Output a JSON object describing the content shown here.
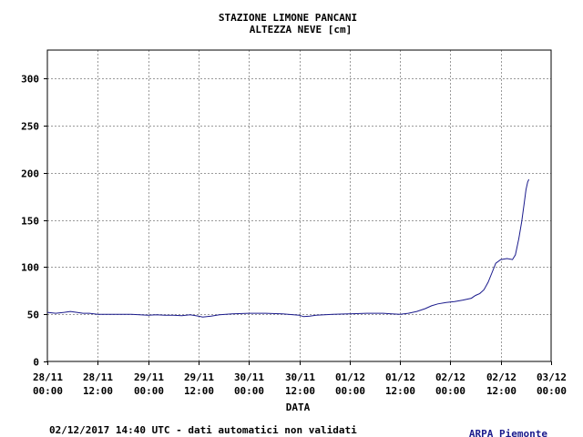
{
  "chart_data": {
    "type": "line",
    "title": "STAZIONE LIMONE PANCANI",
    "subtitle": "ALTEZZA NEVE [cm]",
    "xlabel": "DATA",
    "ylabel": "",
    "grid": true,
    "line_color": "#1a1a8c",
    "ylim": [
      0,
      330
    ],
    "xlim_hours": [
      0,
      120
    ],
    "yticks": [
      0,
      50,
      100,
      150,
      200,
      250,
      300
    ],
    "xticks": [
      {
        "hour": 0,
        "date": "28/11",
        "time": "00:00"
      },
      {
        "hour": 12,
        "date": "28/11",
        "time": "12:00"
      },
      {
        "hour": 24,
        "date": "29/11",
        "time": "00:00"
      },
      {
        "hour": 36,
        "date": "29/11",
        "time": "12:00"
      },
      {
        "hour": 48,
        "date": "30/11",
        "time": "00:00"
      },
      {
        "hour": 60,
        "date": "30/11",
        "time": "12:00"
      },
      {
        "hour": 72,
        "date": "01/12",
        "time": "00:00"
      },
      {
        "hour": 84,
        "date": "01/12",
        "time": "12:00"
      },
      {
        "hour": 96,
        "date": "02/12",
        "time": "00:00"
      },
      {
        "hour": 108,
        "date": "02/12",
        "time": "12:00"
      },
      {
        "hour": 120,
        "date": "03/12",
        "time": "00:00"
      }
    ],
    "series": [
      {
        "points": [
          [
            0,
            52
          ],
          [
            2,
            51
          ],
          [
            4,
            52
          ],
          [
            5.5,
            53
          ],
          [
            7,
            52
          ],
          [
            8.5,
            51
          ],
          [
            10,
            51
          ],
          [
            12,
            50
          ],
          [
            16,
            50
          ],
          [
            20,
            50
          ],
          [
            22,
            49.5
          ],
          [
            24,
            49
          ],
          [
            26,
            49.5
          ],
          [
            28,
            49
          ],
          [
            30,
            49
          ],
          [
            32,
            48.5
          ],
          [
            34,
            49.5
          ],
          [
            36,
            48
          ],
          [
            37,
            47
          ],
          [
            39,
            48
          ],
          [
            41,
            49.5
          ],
          [
            44,
            50.5
          ],
          [
            48,
            51
          ],
          [
            52,
            51
          ],
          [
            56,
            50.5
          ],
          [
            60,
            49
          ],
          [
            61,
            47.5
          ],
          [
            62.5,
            48
          ],
          [
            64,
            49
          ],
          [
            68,
            50
          ],
          [
            72,
            50.5
          ],
          [
            76,
            51
          ],
          [
            80,
            51
          ],
          [
            82,
            50.5
          ],
          [
            84,
            50
          ],
          [
            86,
            51
          ],
          [
            88,
            53
          ],
          [
            90,
            56
          ],
          [
            91.5,
            59
          ],
          [
            93,
            61
          ],
          [
            95,
            62.5
          ],
          [
            97,
            63.5
          ],
          [
            99,
            65
          ],
          [
            101,
            67
          ],
          [
            102,
            70
          ],
          [
            103,
            72
          ],
          [
            104,
            76
          ],
          [
            105,
            84
          ],
          [
            106,
            95
          ],
          [
            106.8,
            104
          ],
          [
            108,
            108
          ],
          [
            109.5,
            109
          ],
          [
            110.8,
            108
          ],
          [
            111.5,
            113
          ],
          [
            112.3,
            130
          ],
          [
            113,
            148
          ],
          [
            113.6,
            168
          ],
          [
            114,
            182
          ],
          [
            114.4,
            190
          ],
          [
            114.7,
            193
          ]
        ]
      }
    ],
    "footer": "02/12/2017 14:40 UTC - dati automatici non validati",
    "brand": "ARPA Piemonte"
  }
}
